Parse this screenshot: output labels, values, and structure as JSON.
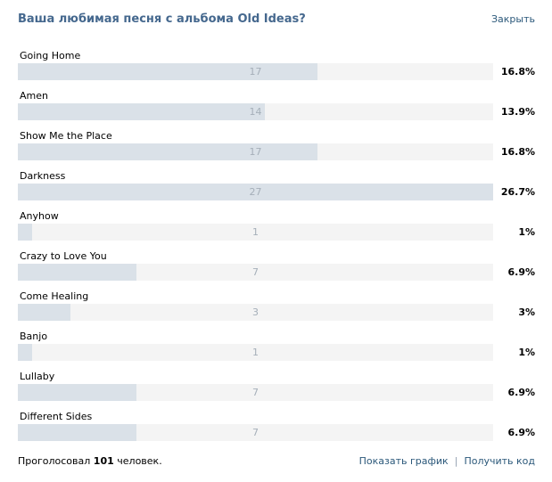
{
  "poll": {
    "title": "Ваша любимая песня с альбома Old Ideas?",
    "close_label": "Закрыть",
    "options": [
      {
        "label": "Going Home",
        "votes": "17",
        "percent": "16.8%",
        "fill_fraction": 0.63
      },
      {
        "label": "Amen",
        "votes": "14",
        "percent": "13.9%",
        "fill_fraction": 0.52
      },
      {
        "label": "Show Me the Place",
        "votes": "17",
        "percent": "16.8%",
        "fill_fraction": 0.63
      },
      {
        "label": "Darkness",
        "votes": "27",
        "percent": "26.7%",
        "fill_fraction": 1.0
      },
      {
        "label": "Anyhow",
        "votes": "1",
        "percent": "1%",
        "fill_fraction": 0.03
      },
      {
        "label": "Crazy to Love You",
        "votes": "7",
        "percent": "6.9%",
        "fill_fraction": 0.25
      },
      {
        "label": "Come Healing",
        "votes": "3",
        "percent": "3%",
        "fill_fraction": 0.11
      },
      {
        "label": "Banjo",
        "votes": "1",
        "percent": "1%",
        "fill_fraction": 0.03
      },
      {
        "label": "Lullaby",
        "votes": "7",
        "percent": "6.9%",
        "fill_fraction": 0.25
      },
      {
        "label": "Different Sides",
        "votes": "7",
        "percent": "6.9%",
        "fill_fraction": 0.25
      }
    ],
    "footer": {
      "voted_prefix": "Проголосовал",
      "voted_count": "101",
      "voted_suffix": "человек.",
      "show_chart_label": "Показать график",
      "separator": "|",
      "get_code_label": "Получить код"
    }
  },
  "colors": {
    "title": "#45688e",
    "link": "#2b587a",
    "bar_fill": "#dae1e8",
    "bar_track": "#f4f4f4",
    "bar_count_text": "#a5afb9"
  }
}
